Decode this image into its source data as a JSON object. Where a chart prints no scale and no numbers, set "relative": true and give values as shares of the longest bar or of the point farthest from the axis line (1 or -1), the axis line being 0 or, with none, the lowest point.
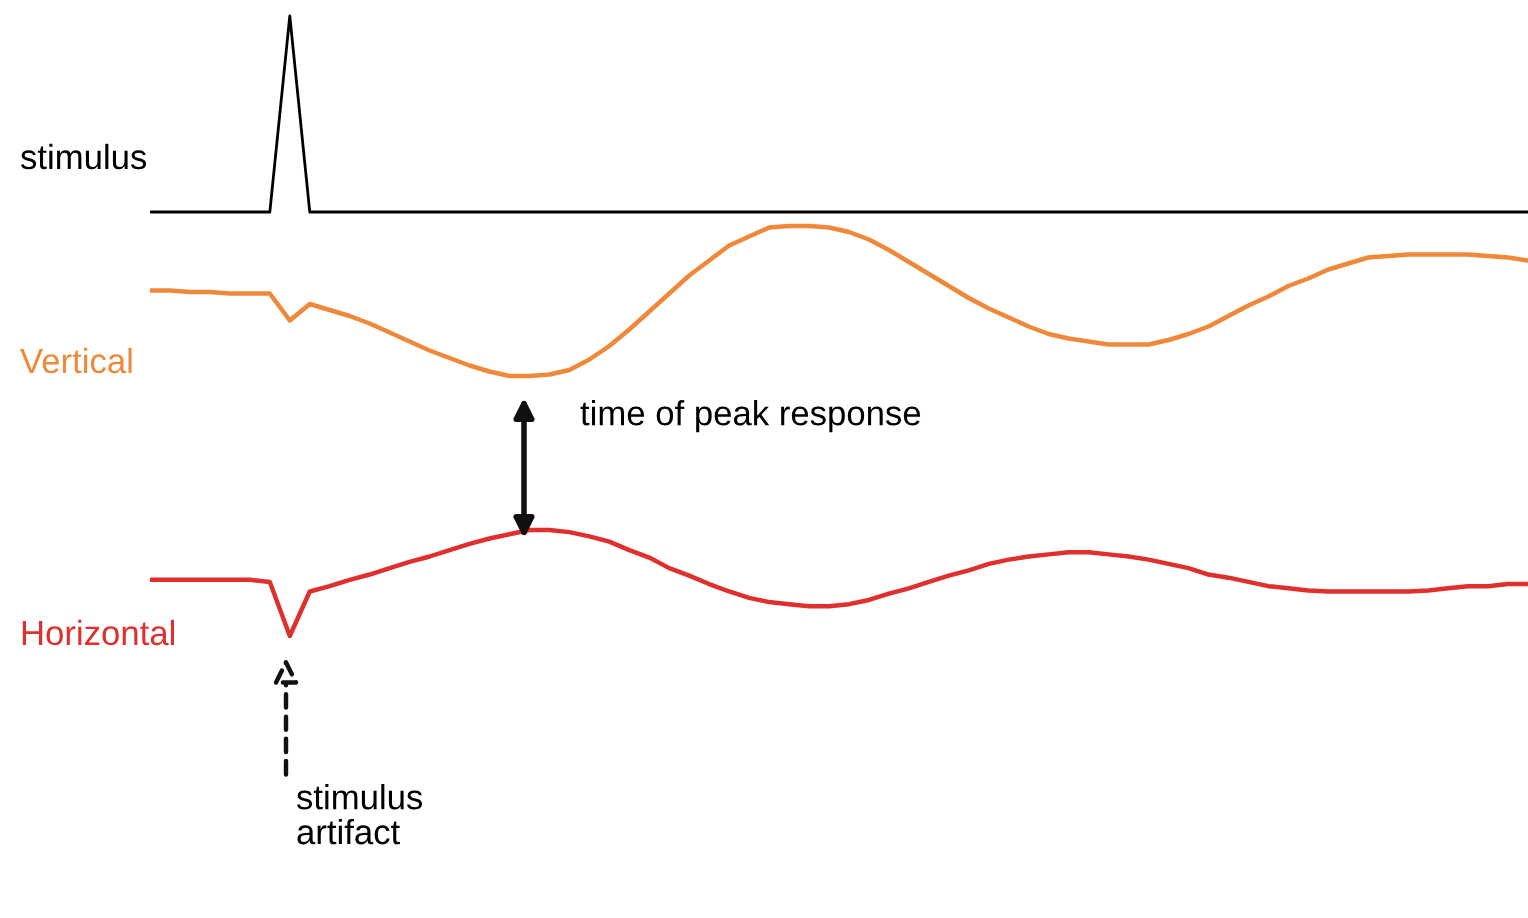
{
  "chart_data": [
    {
      "type": "line",
      "relative": true,
      "categories": [
        null,
        null,
        null,
        null,
        null,
        null,
        null,
        null,
        null,
        null,
        null,
        null,
        null,
        null,
        null,
        null,
        null,
        null,
        null,
        null,
        null,
        null,
        null,
        null,
        null,
        null,
        null,
        null,
        null,
        null,
        null,
        null,
        null,
        null,
        null,
        null,
        null,
        null,
        null,
        null,
        null,
        null,
        null,
        null,
        null,
        null,
        null,
        null,
        null,
        null,
        null,
        null,
        null,
        null,
        null,
        null,
        null,
        null,
        null,
        null,
        null,
        null,
        null,
        null,
        null,
        null,
        null,
        null,
        null,
        null
      ],
      "series": [
        {
          "name": "stimulus",
          "color": "#000000",
          "values": [
            0,
            0,
            0,
            0,
            0,
            0,
            0,
            1,
            0,
            0,
            0,
            0,
            0,
            0,
            0,
            0,
            0,
            0,
            0,
            0,
            0,
            0,
            0,
            0,
            0,
            0,
            0,
            0,
            0,
            0,
            0,
            0,
            0,
            0,
            0,
            0,
            0,
            0,
            0,
            0,
            0,
            0,
            0,
            0,
            0,
            0,
            0,
            0,
            0,
            0,
            0,
            0,
            0,
            0,
            0,
            0,
            0,
            0,
            0,
            0,
            0,
            0,
            0,
            0,
            0,
            0,
            0,
            0,
            0,
            0
          ]
        }
      ]
    },
    {
      "type": "line",
      "relative": true,
      "categories": [
        null,
        null,
        null,
        null,
        null,
        null,
        null,
        null,
        null,
        null,
        null,
        null,
        null,
        null,
        null,
        null,
        null,
        null,
        null,
        null,
        null,
        null,
        null,
        null,
        null,
        null,
        null,
        null,
        null,
        null,
        null,
        null,
        null,
        null,
        null,
        null,
        null,
        null,
        null,
        null,
        null,
        null,
        null,
        null,
        null,
        null,
        null,
        null,
        null,
        null,
        null,
        null,
        null,
        null,
        null,
        null,
        null,
        null,
        null,
        null,
        null,
        null,
        null,
        null,
        null,
        null,
        null,
        null,
        null,
        null
      ],
      "annotations": [
        "time of peak response"
      ],
      "series": [
        {
          "name": "Vertical",
          "color": "#f0883a",
          "values": [
            0.57,
            0.57,
            0.56,
            0.56,
            0.55,
            0.55,
            0.55,
            0.37,
            0.48,
            0.44,
            0.4,
            0.35,
            0.29,
            0.23,
            0.17,
            0.12,
            0.07,
            0.03,
            0,
            0,
            0.01,
            0.04,
            0.11,
            0.2,
            0.31,
            0.43,
            0.55,
            0.67,
            0.77,
            0.87,
            0.93,
            0.99,
            1,
            1,
            0.99,
            0.96,
            0.91,
            0.84,
            0.76,
            0.68,
            0.6,
            0.52,
            0.45,
            0.39,
            0.33,
            0.28,
            0.25,
            0.23,
            0.21,
            0.21,
            0.21,
            0.24,
            0.28,
            0.33,
            0.4,
            0.47,
            0.53,
            0.6,
            0.65,
            0.71,
            0.75,
            0.79,
            0.8,
            0.81,
            0.81,
            0.81,
            0.81,
            0.8,
            0.79,
            0.77
          ]
        }
      ]
    },
    {
      "type": "line",
      "relative": true,
      "categories": [
        null,
        null,
        null,
        null,
        null,
        null,
        null,
        null,
        null,
        null,
        null,
        null,
        null,
        null,
        null,
        null,
        null,
        null,
        null,
        null,
        null,
        null,
        null,
        null,
        null,
        null,
        null,
        null,
        null,
        null,
        null,
        null,
        null,
        null,
        null,
        null,
        null,
        null,
        null,
        null,
        null,
        null,
        null,
        null,
        null,
        null,
        null,
        null,
        null,
        null,
        null,
        null,
        null,
        null,
        null,
        null,
        null,
        null,
        null,
        null,
        null,
        null,
        null,
        null,
        null,
        null,
        null,
        null,
        null,
        null
      ],
      "annotations": [
        "stimulus\nartifact"
      ],
      "series": [
        {
          "name": "Horizontal",
          "color": "#e0302e",
          "values": [
            0.53,
            0.53,
            0.53,
            0.53,
            0.53,
            0.53,
            0.51,
            0,
            0.42,
            0.47,
            0.53,
            0.58,
            0.64,
            0.7,
            0.75,
            0.81,
            0.87,
            0.92,
            0.96,
            1,
            1,
            0.98,
            0.94,
            0.89,
            0.81,
            0.74,
            0.64,
            0.57,
            0.49,
            0.42,
            0.36,
            0.32,
            0.3,
            0.28,
            0.28,
            0.3,
            0.34,
            0.4,
            0.45,
            0.51,
            0.57,
            0.62,
            0.68,
            0.72,
            0.75,
            0.77,
            0.79,
            0.79,
            0.77,
            0.75,
            0.72,
            0.68,
            0.64,
            0.58,
            0.55,
            0.51,
            0.47,
            0.45,
            0.43,
            0.42,
            0.42,
            0.42,
            0.42,
            0.42,
            0.43,
            0.45,
            0.47,
            0.47,
            0.49,
            0.49
          ]
        }
      ]
    }
  ]
}
